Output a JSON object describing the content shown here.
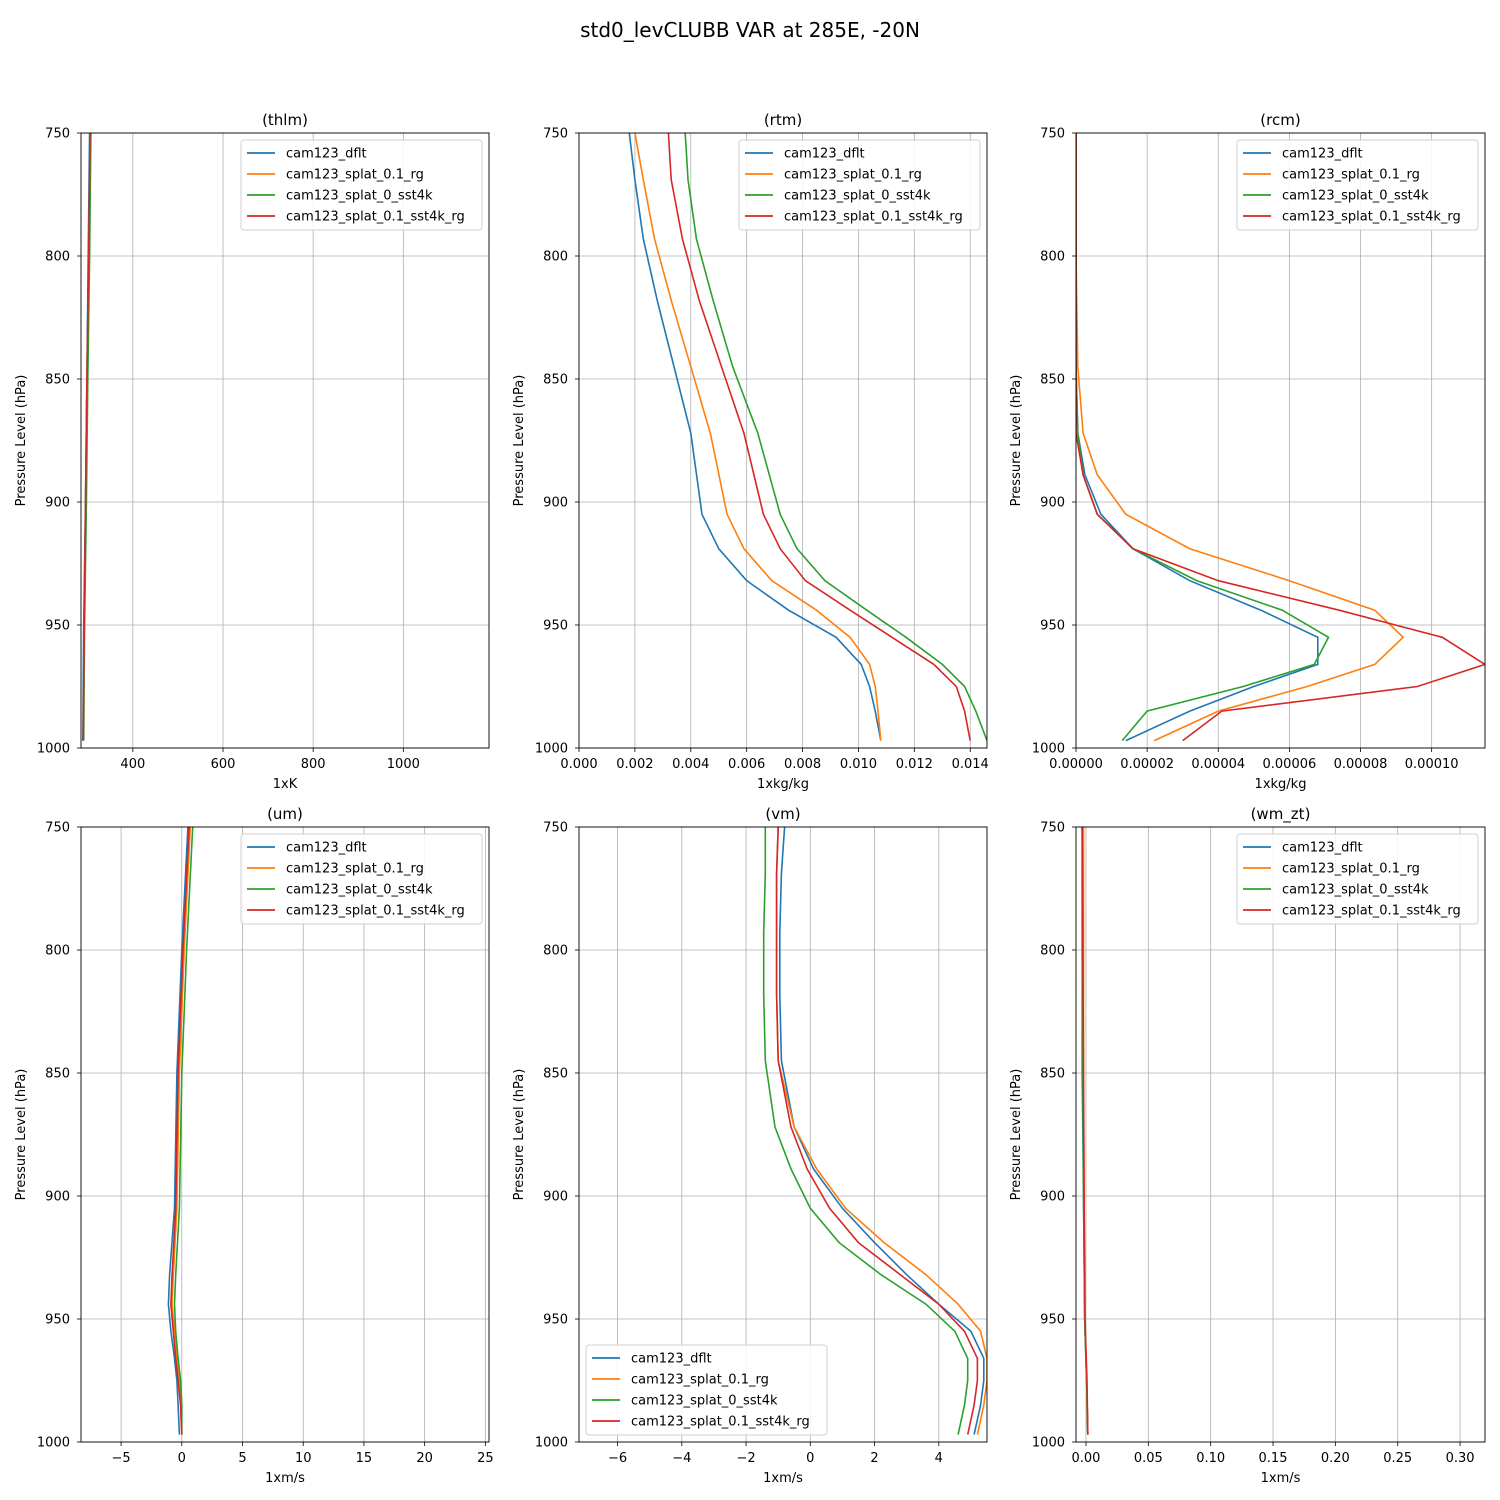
{
  "title": "std0_levCLUBB VAR at 285E, -20N",
  "series_names": [
    "cam123_dflt",
    "cam123_splat_0.1_rg",
    "cam123_splat_0_sst4k",
    "cam123_splat_0.1_sst4k_rg"
  ],
  "colors": [
    "#1f77b4",
    "#ff7f0e",
    "#2ca02c",
    "#d62728"
  ],
  "ylabel": "Pressure Level (hPa)",
  "chart_data": [
    {
      "type": "line",
      "title": "(thlm)",
      "xlabel": "1xK",
      "ylabel": "Pressure Level (hPa)",
      "xlim": [
        285,
        1190
      ],
      "ylim": [
        1000,
        750
      ],
      "xticks": [
        400,
        600,
        800,
        1000
      ],
      "xticklabels": [
        "400",
        "600",
        "800",
        "1000"
      ],
      "yticks": [
        750,
        800,
        850,
        900,
        950,
        1000
      ],
      "yticklabels": [
        "750",
        "800",
        "850",
        "900",
        "950",
        "1000"
      ],
      "legend": "top-right",
      "y": [
        750,
        800,
        850,
        900,
        950,
        997
      ],
      "series": [
        {
          "name": "cam123_dflt",
          "values": [
            304,
            301,
            298,
            295,
            291,
            289
          ]
        },
        {
          "name": "cam123_splat_0.1_rg",
          "values": [
            306,
            303,
            299,
            296,
            292,
            290
          ]
        },
        {
          "name": "cam123_splat_0_sst4k",
          "values": [
            307,
            304,
            300,
            297,
            293,
            291
          ]
        },
        {
          "name": "cam123_splat_0.1_sst4k_rg",
          "values": [
            305,
            302,
            298,
            295,
            292,
            290
          ]
        }
      ]
    },
    {
      "type": "line",
      "title": "(rtm)",
      "xlabel": "1xkg/kg",
      "ylabel": "Pressure Level (hPa)",
      "xlim": [
        0,
        0.0146
      ],
      "ylim": [
        1000,
        750
      ],
      "xticks": [
        0,
        0.002,
        0.004,
        0.006,
        0.008,
        0.01,
        0.012,
        0.014
      ],
      "xticklabels": [
        "0.000",
        "0.002",
        "0.004",
        "0.006",
        "0.008",
        "0.010",
        "0.012",
        "0.014"
      ],
      "yticks": [
        750,
        800,
        850,
        900,
        950,
        1000
      ],
      "yticklabels": [
        "750",
        "800",
        "850",
        "900",
        "950",
        "1000"
      ],
      "legend": "top-right",
      "y": [
        750,
        769,
        793,
        818,
        845,
        872,
        905,
        919,
        932,
        944,
        955,
        966,
        975,
        985,
        997
      ],
      "series": [
        {
          "name": "cam123_dflt",
          "values": [
            0.0018,
            0.002,
            0.0023,
            0.0028,
            0.0034,
            0.004,
            0.0044,
            0.005,
            0.006,
            0.0075,
            0.0092,
            0.0101,
            0.0104,
            0.0106,
            0.0108
          ]
        },
        {
          "name": "cam123_splat_0.1_rg",
          "values": [
            0.002,
            0.0023,
            0.0027,
            0.0033,
            0.004,
            0.0047,
            0.0053,
            0.0059,
            0.0069,
            0.0085,
            0.0097,
            0.0104,
            0.0106,
            0.0107,
            0.0108
          ]
        },
        {
          "name": "cam123_splat_0_sst4k",
          "values": [
            0.0038,
            0.0039,
            0.0042,
            0.0048,
            0.0055,
            0.0064,
            0.0072,
            0.0078,
            0.0088,
            0.0103,
            0.0117,
            0.013,
            0.0138,
            0.0142,
            0.0146
          ]
        },
        {
          "name": "cam123_splat_0.1_sst4k_rg",
          "values": [
            0.0032,
            0.0033,
            0.0037,
            0.0043,
            0.0051,
            0.0059,
            0.0066,
            0.0072,
            0.0081,
            0.0097,
            0.0112,
            0.0127,
            0.0135,
            0.0138,
            0.014
          ]
        }
      ]
    },
    {
      "type": "line",
      "title": "(rcm)",
      "xlabel": "1xkg/kg",
      "ylabel": "Pressure Level (hPa)",
      "xlim": [
        0,
        0.000115
      ],
      "ylim": [
        1000,
        750
      ],
      "xticks": [
        0,
        2e-05,
        4e-05,
        6e-05,
        8e-05,
        0.0001
      ],
      "xticklabels": [
        "0.00000",
        "0.00002",
        "0.00004",
        "0.00006",
        "0.00008",
        "0.00010"
      ],
      "yticks": [
        750,
        800,
        850,
        900,
        950,
        1000
      ],
      "yticklabels": [
        "750",
        "800",
        "850",
        "900",
        "950",
        "1000"
      ],
      "legend": "top-right",
      "y": [
        750,
        800,
        845,
        872,
        889,
        905,
        919,
        932,
        944,
        955,
        966,
        975,
        985,
        997
      ],
      "series": [
        {
          "name": "cam123_dflt",
          "values": [
            0,
            0,
            0,
            5e-07,
            2.5e-06,
            7e-06,
            1.6e-05,
            3.2e-05,
            5.2e-05,
            6.8e-05,
            6.8e-05,
            5e-05,
            3.2e-05,
            1.4e-05
          ]
        },
        {
          "name": "cam123_splat_0.1_rg",
          "values": [
            0,
            0,
            5e-07,
            2e-06,
            6e-06,
            1.4e-05,
            3.2e-05,
            6e-05,
            8.4e-05,
            9.2e-05,
            8.4e-05,
            6.5e-05,
            4e-05,
            2.2e-05
          ]
        },
        {
          "name": "cam123_splat_0_sst4k",
          "values": [
            0,
            0,
            0,
            5e-07,
            2e-06,
            6e-06,
            1.6e-05,
            3.4e-05,
            5.8e-05,
            7.1e-05,
            6.7e-05,
            4.7e-05,
            2e-05,
            1.3e-05
          ]
        },
        {
          "name": "cam123_splat_0.1_sst4k_rg",
          "values": [
            0,
            0,
            0,
            0,
            2e-06,
            6e-06,
            1.6e-05,
            4e-05,
            7.4e-05,
            0.000103,
            0.000115,
            9.6e-05,
            4.1e-05,
            3e-05
          ]
        }
      ]
    },
    {
      "type": "line",
      "title": "(um)",
      "xlabel": "1xm/s",
      "ylabel": "Pressure Level (hPa)",
      "xlim": [
        -8.3,
        25.3
      ],
      "ylim": [
        1000,
        750
      ],
      "xticks": [
        -5,
        0,
        5,
        10,
        15,
        20,
        25
      ],
      "xticklabels": [
        "−5",
        "0",
        "5",
        "10",
        "15",
        "20",
        "25"
      ],
      "yticks": [
        750,
        800,
        850,
        900,
        950,
        1000
      ],
      "yticklabels": [
        "750",
        "800",
        "850",
        "900",
        "950",
        "1000"
      ],
      "legend": "top-right",
      "y": [
        750,
        800,
        850,
        905,
        932,
        944,
        955,
        966,
        975,
        985,
        997
      ],
      "series": [
        {
          "name": "cam123_dflt",
          "values": [
            0.5,
            0,
            -0.4,
            -0.6,
            -1.0,
            -1.1,
            -0.9,
            -0.6,
            -0.4,
            -0.3,
            -0.2
          ]
        },
        {
          "name": "cam123_splat_0.1_rg",
          "values": [
            0.7,
            0.2,
            -0.2,
            -0.4,
            -0.7,
            -0.8,
            -0.6,
            -0.4,
            -0.2,
            -0.1,
            0
          ]
        },
        {
          "name": "cam123_splat_0_sst4k",
          "values": [
            0.9,
            0.4,
            0,
            -0.2,
            -0.5,
            -0.6,
            -0.5,
            -0.3,
            -0.1,
            0,
            0
          ]
        },
        {
          "name": "cam123_splat_0.1_sst4k_rg",
          "values": [
            0.6,
            0.1,
            -0.3,
            -0.5,
            -0.8,
            -0.9,
            -0.7,
            -0.5,
            -0.3,
            -0.1,
            0
          ]
        }
      ]
    },
    {
      "type": "line",
      "title": "(vm)",
      "xlabel": "1xm/s",
      "ylabel": "Pressure Level (hPa)",
      "xlim": [
        -7.2,
        5.5
      ],
      "ylim": [
        1000,
        750
      ],
      "xticks": [
        -6,
        -4,
        -2,
        0,
        2,
        4
      ],
      "xticklabels": [
        "−6",
        "−4",
        "−2",
        "0",
        "2",
        "4"
      ],
      "yticks": [
        750,
        800,
        850,
        900,
        950,
        1000
      ],
      "yticklabels": [
        "750",
        "800",
        "850",
        "900",
        "950",
        "1000"
      ],
      "legend": "lower-left",
      "y": [
        750,
        769,
        793,
        818,
        845,
        872,
        889,
        905,
        919,
        932,
        944,
        955,
        966,
        975,
        985,
        997
      ],
      "series": [
        {
          "name": "cam123_dflt",
          "values": [
            -0.8,
            -0.9,
            -0.95,
            -0.95,
            -0.9,
            -0.5,
            0.1,
            1.0,
            2.0,
            3.0,
            4.0,
            5.0,
            5.4,
            5.4,
            5.3,
            5.1
          ]
        },
        {
          "name": "cam123_splat_0.1_rg",
          "values": [
            -1.0,
            -1.05,
            -1.05,
            -1.05,
            -1.0,
            -0.5,
            0.2,
            1.1,
            2.3,
            3.6,
            4.6,
            5.3,
            5.5,
            5.5,
            5.4,
            5.2
          ]
        },
        {
          "name": "cam123_splat_0_sst4k",
          "values": [
            -1.4,
            -1.4,
            -1.45,
            -1.45,
            -1.4,
            -1.1,
            -0.6,
            0,
            0.9,
            2.2,
            3.6,
            4.5,
            4.9,
            4.9,
            4.8,
            4.6
          ]
        },
        {
          "name": "cam123_splat_0.1_sst4k_rg",
          "values": [
            -1.0,
            -1.05,
            -1.05,
            -1.05,
            -1.0,
            -0.6,
            -0.1,
            0.6,
            1.5,
            2.8,
            4.0,
            4.8,
            5.2,
            5.2,
            5.1,
            4.9
          ]
        }
      ]
    },
    {
      "type": "line",
      "title": "(wm_zt)",
      "xlabel": "1xm/s",
      "ylabel": "Pressure Level (hPa)",
      "xlim": [
        -0.008,
        0.32
      ],
      "ylim": [
        1000,
        750
      ],
      "xticks": [
        0,
        0.05,
        0.1,
        0.15,
        0.2,
        0.25,
        0.3
      ],
      "xticklabels": [
        "0.00",
        "0.05",
        "0.10",
        "0.15",
        "0.20",
        "0.25",
        "0.30"
      ],
      "yticks": [
        750,
        800,
        850,
        900,
        950,
        1000
      ],
      "yticklabels": [
        "750",
        "800",
        "850",
        "900",
        "950",
        "1000"
      ],
      "legend": "top-right",
      "y": [
        750,
        800,
        850,
        900,
        950,
        975,
        997
      ],
      "series": [
        {
          "name": "cam123_dflt",
          "values": [
            -0.003,
            -0.003,
            -0.003,
            -0.002,
            -0.001,
            0.0005,
            0.0015
          ]
        },
        {
          "name": "cam123_splat_0.1_rg",
          "values": [
            -0.002,
            -0.002,
            -0.002,
            -0.0015,
            -0.001,
            0.0005,
            0.0015
          ]
        },
        {
          "name": "cam123_splat_0_sst4k",
          "values": [
            -0.003,
            -0.003,
            -0.0025,
            -0.002,
            -0.001,
            0.0005,
            0.0015
          ]
        },
        {
          "name": "cam123_splat_0.1_sst4k_rg",
          "values": [
            -0.003,
            -0.0025,
            -0.002,
            -0.0015,
            -0.0008,
            0.0008,
            0.0015
          ]
        }
      ]
    }
  ]
}
